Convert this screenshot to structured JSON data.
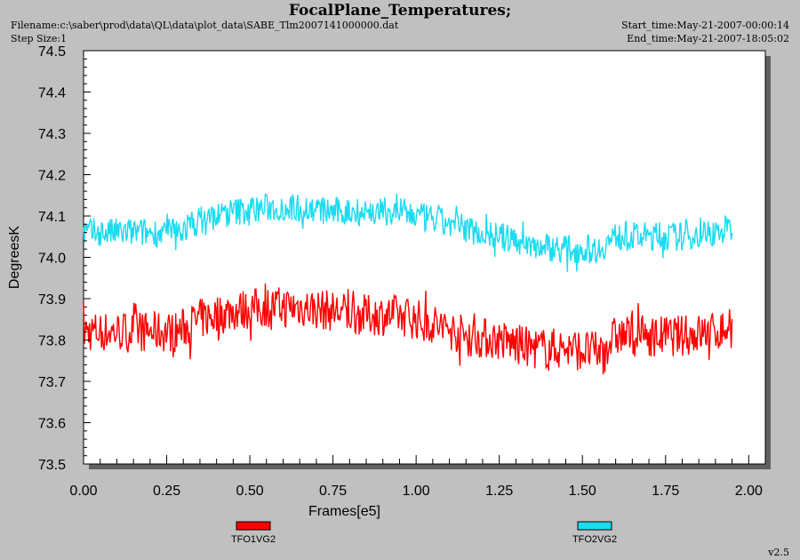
{
  "header": {
    "title": "FocalPlane_Temperatures;",
    "filename": "Filename:c:\\saber\\prod\\data\\QL\\data\\plot_data\\SABE_Tlm2007141000000.dat",
    "step_size": "Step Size:1",
    "start_time": "Start_time:May-21-2007-00:00:14",
    "end_time": "End_time:May-21-2007-18:05:02"
  },
  "version": "v2.5",
  "chart_data": {
    "type": "line",
    "title": "FocalPlane_Temperatures;",
    "xlabel": "Frames[e5]",
    "ylabel": "DegreesK",
    "xlim": [
      0.0,
      2.05
    ],
    "ylim": [
      73.5,
      74.5
    ],
    "xticks": [
      "0.00",
      "0.25",
      "0.50",
      "0.75",
      "1.00",
      "1.25",
      "1.50",
      "1.75",
      "2.00"
    ],
    "yticks": [
      "73.5",
      "73.6",
      "73.7",
      "73.8",
      "73.9",
      "74.0",
      "74.1",
      "74.2",
      "74.3",
      "74.4",
      "74.5"
    ],
    "grid": false,
    "legend_placement": "bottom",
    "series": [
      {
        "name": "TFO1VG2",
        "color": "#ff0000",
        "x": [
          0.0,
          0.1,
          0.2,
          0.28,
          0.35,
          0.45,
          0.55,
          0.65,
          0.75,
          0.85,
          0.95,
          1.05,
          1.15,
          1.25,
          1.35,
          1.45,
          1.55,
          1.6,
          1.7,
          1.8,
          1.9,
          1.95
        ],
        "y": [
          73.82,
          73.82,
          73.82,
          73.82,
          73.85,
          73.87,
          73.88,
          73.88,
          73.87,
          73.86,
          73.86,
          73.84,
          73.81,
          73.8,
          73.78,
          73.78,
          73.77,
          73.81,
          73.81,
          73.81,
          73.82,
          73.83
        ],
        "band": 0.05
      },
      {
        "name": "TFO2VG2",
        "color": "#19dcf0",
        "x": [
          0.0,
          0.1,
          0.2,
          0.28,
          0.35,
          0.45,
          0.55,
          0.65,
          0.75,
          0.85,
          0.95,
          1.05,
          1.15,
          1.25,
          1.35,
          1.45,
          1.55,
          1.6,
          1.7,
          1.8,
          1.9,
          1.95
        ],
        "y": [
          74.06,
          74.06,
          74.06,
          74.06,
          74.09,
          74.11,
          74.12,
          74.12,
          74.11,
          74.11,
          74.11,
          74.09,
          74.07,
          74.05,
          74.03,
          74.02,
          74.02,
          74.05,
          74.05,
          74.05,
          74.06,
          74.07
        ],
        "band": 0.035
      }
    ]
  }
}
